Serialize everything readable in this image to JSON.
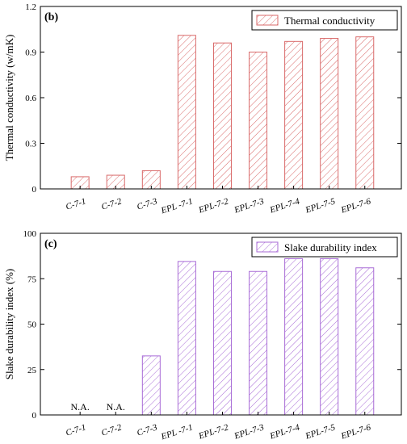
{
  "chart_data": [
    {
      "type": "bar",
      "panel": "(b)",
      "ylabel": "Thermal conductivity (w/mK)",
      "legend": "Thermal conductivity",
      "legend_position": "top-right",
      "color": "#d96a6a",
      "ylim": [
        0,
        1.2
      ],
      "yticks": [
        "0",
        "0.3",
        "0.6",
        "0.9",
        "1.2"
      ],
      "categories": [
        "C-7-1",
        "C-7-2",
        "C-7-3",
        "EPL -7-1",
        "EPL-7-2",
        "EPL-7-3",
        "EPL-7-4",
        "EPL-7-5",
        "EPL-7-6"
      ],
      "values": [
        0.08,
        0.09,
        0.12,
        1.01,
        0.96,
        0.9,
        0.97,
        0.99,
        1.0
      ],
      "annotations": [
        null,
        null,
        null,
        null,
        null,
        null,
        null,
        null,
        null
      ]
    },
    {
      "type": "bar",
      "panel": "(c)",
      "ylabel": "Slake durability index (%)",
      "legend": "Slake durability index",
      "legend_position": "top-right",
      "color": "#a86bd6",
      "ylim": [
        0,
        100
      ],
      "yticks": [
        "0",
        "25",
        "50",
        "75",
        "100"
      ],
      "categories": [
        "C-7-1",
        "C-7-2",
        "C-7-3",
        "EPL -7-1",
        "EPL-7-2",
        "EPL-7-3",
        "EPL-7-4",
        "EPL-7-5",
        "EPL-7-6"
      ],
      "values": [
        null,
        null,
        32.5,
        84.5,
        79.0,
        79.0,
        86.0,
        86.0,
        81.0
      ],
      "annotations": [
        "N.A.",
        "N.A.",
        null,
        null,
        null,
        null,
        null,
        null,
        null
      ]
    }
  ]
}
